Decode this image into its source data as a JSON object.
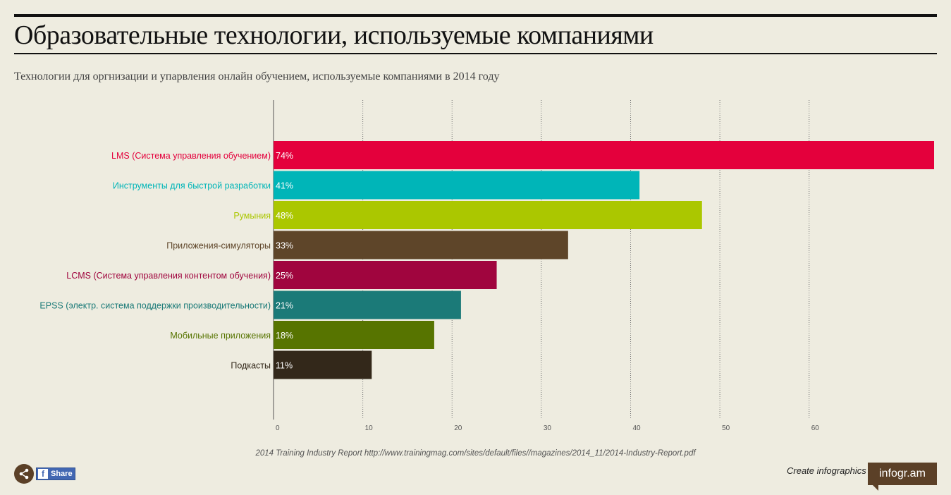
{
  "header": {
    "title": "Образовательные технологии, используемые компаниями",
    "subtitle": "Технологии для оргнизации и упарвления онлайн обучением, используемые компаниями в 2014 году"
  },
  "chart_data": {
    "type": "bar",
    "orientation": "horizontal",
    "categories": [
      "LMS (Система управления обучением)",
      "Инструменты для быстрой разработки",
      "Румыния",
      "Приложения-симуляторы",
      "LCMS (Система управления контентом обучения)",
      "EPSS (электр. система поддержки производительности)",
      "Мобильные приложения",
      "Подкасты"
    ],
    "values": [
      74,
      41,
      48,
      33,
      25,
      21,
      18,
      11
    ],
    "value_labels": [
      "74%",
      "41%",
      "48%",
      "33%",
      "25%",
      "21%",
      "18%",
      "11%"
    ],
    "colors": [
      "#e4003c",
      "#00b5b8",
      "#abc700",
      "#5e4529",
      "#a0053e",
      "#1b7a78",
      "#577400",
      "#33281a"
    ],
    "xlim": [
      0,
      74
    ],
    "xticks": [
      0,
      10,
      20,
      30,
      40,
      50,
      60
    ],
    "grid": "vertical-dotted"
  },
  "footer": {
    "source": "2014 Training Industry Report http://www.trainingmag.com/sites/default/files//magazines/2014_11/2014-Industry-Report.pdf",
    "share_label": "Share",
    "create_label": "Create infographics",
    "brand": "infogr.am"
  }
}
